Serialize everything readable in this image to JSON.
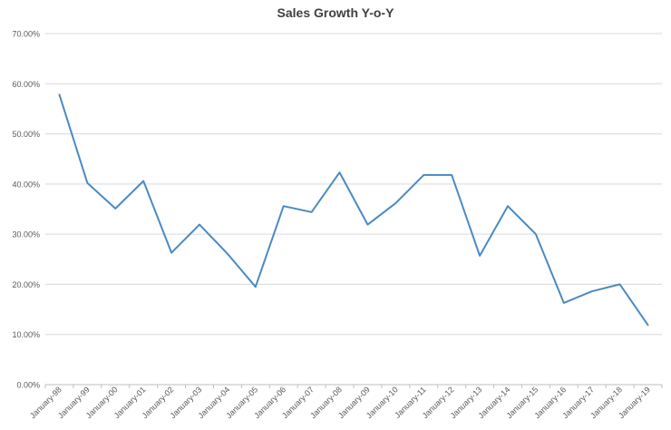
{
  "chart_data": {
    "type": "line",
    "title": "Sales Growth Y-o-Y",
    "xlabel": "",
    "ylabel": "",
    "categories": [
      "January-98",
      "January-99",
      "January-00",
      "January-01",
      "January-02",
      "January-03",
      "January-04",
      "January-05",
      "January-06",
      "January-07",
      "January-08",
      "January-09",
      "January-10",
      "January-11",
      "January-12",
      "January-13",
      "January-14",
      "January-15",
      "January-16",
      "January-17",
      "January-18",
      "January-19"
    ],
    "series": [
      {
        "values": [
          57.8,
          40.2,
          35.1,
          40.6,
          26.3,
          31.9,
          26.1,
          19.5,
          35.6,
          34.4,
          42.3,
          31.9,
          36.2,
          41.8,
          41.8,
          25.7,
          35.6,
          30.0,
          16.3,
          18.6,
          20.0,
          11.9
        ]
      }
    ],
    "ylim": [
      0,
      70
    ],
    "yticks": [
      "0.00%",
      "10.00%",
      "20.00%",
      "30.00%",
      "40.00%",
      "50.00%",
      "60.00%",
      "70.00%"
    ],
    "grid": true,
    "line_color": "#4a8ac4",
    "grid_color": "#d9d9d9"
  }
}
